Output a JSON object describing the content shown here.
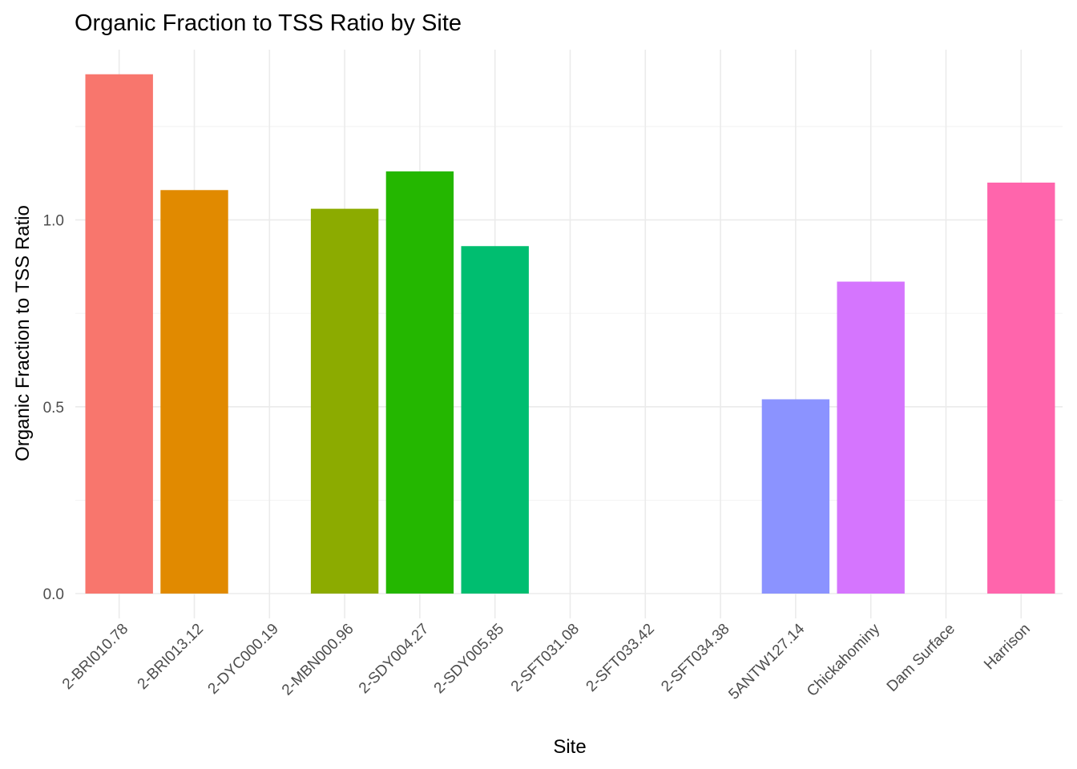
{
  "chart_data": {
    "type": "bar",
    "title": "Organic Fraction to TSS Ratio by Site",
    "xlabel": "Site",
    "ylabel": "Organic Fraction to TSS Ratio",
    "categories": [
      "2-BRI010.78",
      "2-BRI013.12",
      "2-DYC000.19",
      "2-MBN000.96",
      "2-SDY004.27",
      "2-SDY005.85",
      "2-SFT031.08",
      "2-SFT033.42",
      "2-SFT034.38",
      "5ANTW127.14",
      "Chickahominy",
      "Dam Surface",
      "Harrison"
    ],
    "values": [
      1.39,
      1.08,
      null,
      1.03,
      1.13,
      0.93,
      null,
      null,
      null,
      0.52,
      0.835,
      null,
      1.1
    ],
    "colors": [
      "#F8766D",
      "#E18A00",
      null,
      "#8CAB00",
      "#24B700",
      "#00BE70",
      null,
      null,
      null,
      "#8B93FF",
      "#D575FE",
      null,
      "#FF65AC"
    ],
    "ylim": [
      0,
      1.45
    ],
    "yticks": [
      0.0,
      0.5,
      1.0
    ],
    "ytick_labels": [
      "0.0",
      "0.5",
      "1.0"
    ],
    "grid": true,
    "legend": "none"
  }
}
